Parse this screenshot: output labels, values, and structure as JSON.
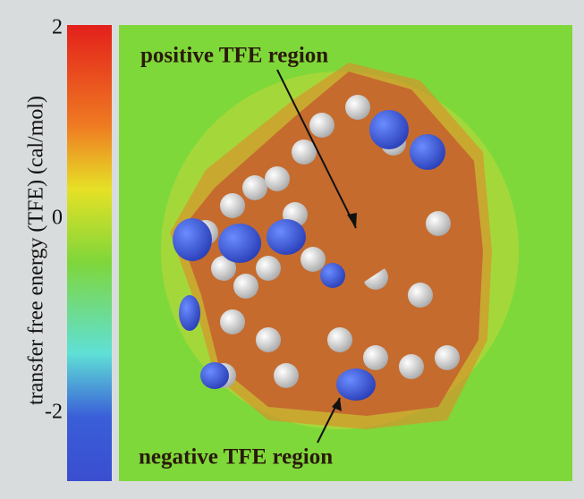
{
  "colorbar": {
    "label": "transfer free energy (TFE)  (cal/mol)",
    "lim": [
      -2.7,
      2
    ],
    "ticks": [
      2,
      0,
      -2
    ]
  },
  "annotations": {
    "positive": "positive TFE region",
    "negative": "negative TFE region"
  }
}
